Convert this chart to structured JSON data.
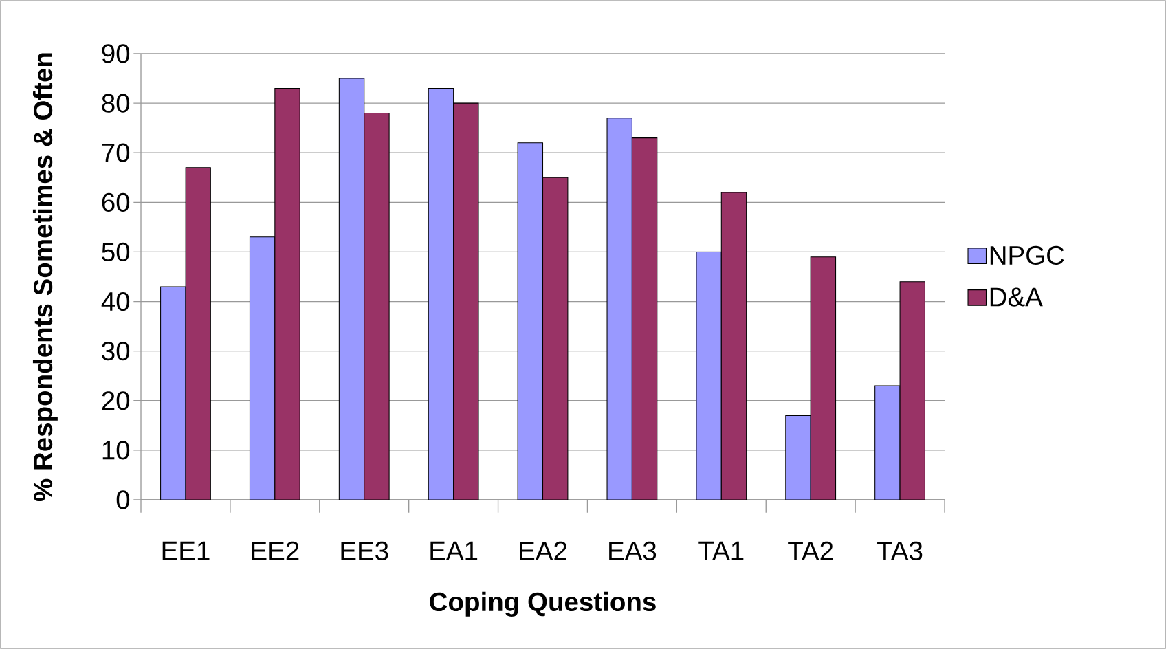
{
  "chart_data": {
    "type": "bar",
    "xlabel": "Coping Questions",
    "ylabel": "% Respondents Sometimes & Often",
    "categories": [
      "EE1",
      "EE2",
      "EE3",
      "EA1",
      "EA2",
      "EA3",
      "TA1",
      "TA2",
      "TA3"
    ],
    "series": [
      {
        "name": "NPGC",
        "color": "#9999ff",
        "values": [
          43,
          53,
          85,
          83,
          72,
          77,
          50,
          17,
          23
        ]
      },
      {
        "name": "D&A",
        "color": "#993366",
        "values": [
          67,
          83,
          78,
          80,
          65,
          73,
          62,
          49,
          44
        ]
      }
    ],
    "ylim": [
      0,
      90
    ],
    "yticks": [
      0,
      10,
      20,
      30,
      40,
      50,
      60,
      70,
      80,
      90
    ],
    "grid": "y",
    "legend": "right"
  }
}
